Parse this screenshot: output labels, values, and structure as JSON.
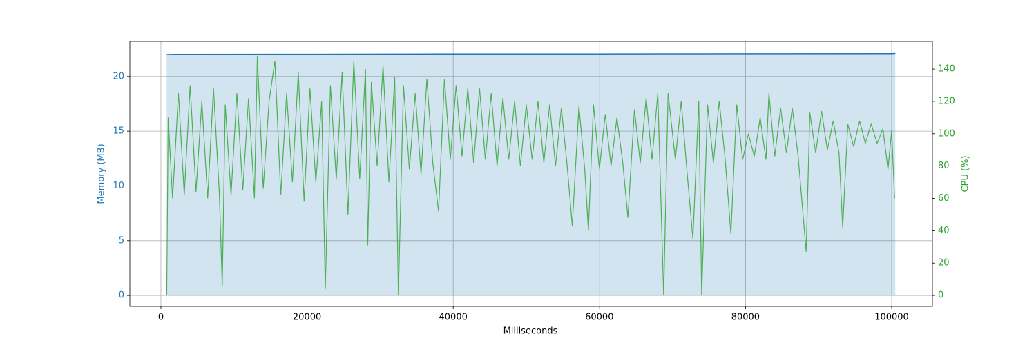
{
  "chart_data": {
    "type": "line",
    "xlabel": "Milliseconds",
    "ylabel": "Memory (MB)",
    "y2label": "CPU (%)",
    "xlim": [
      -4250,
      105575
    ],
    "ylim": [
      -1.0,
      23.2
    ],
    "y2lim": [
      -6.8,
      157.1
    ],
    "xticks": [
      0,
      20000,
      40000,
      60000,
      80000,
      100000
    ],
    "yticks": [
      0,
      5,
      10,
      15,
      20
    ],
    "y2ticks": [
      0,
      20,
      40,
      60,
      80,
      100,
      120,
      140
    ],
    "grid": true,
    "series": [
      {
        "color": "#1f77b4",
        "area": true,
        "x": [
          800,
          2000,
          20000,
          40000,
          60000,
          80000,
          100000,
          100500
        ],
        "values": [
          22.0,
          22.02,
          22.03,
          22.05,
          22.05,
          22.07,
          22.08,
          22.1
        ]
      },
      {
        "color": "#2ca02c",
        "axis": "y2",
        "x": [
          800,
          1000,
          1600,
          2400,
          3200,
          4000,
          4800,
          5600,
          6400,
          7200,
          8000,
          8400,
          8800,
          9600,
          10400,
          11200,
          12000,
          12800,
          13200,
          14000,
          14800,
          15600,
          16400,
          17200,
          18000,
          18800,
          19600,
          20400,
          21200,
          22000,
          22500,
          23200,
          24000,
          24800,
          25600,
          26400,
          27200,
          28000,
          28300,
          28800,
          29600,
          30400,
          31200,
          32000,
          32500,
          33200,
          34000,
          34800,
          35600,
          36400,
          37200,
          38000,
          38800,
          39600,
          40400,
          41200,
          42000,
          42800,
          43600,
          44400,
          45200,
          46000,
          46800,
          47600,
          48400,
          49200,
          50000,
          50800,
          51600,
          52400,
          53200,
          54000,
          54800,
          55600,
          56300,
          57200,
          58000,
          58500,
          59200,
          60000,
          60800,
          61600,
          62400,
          63200,
          63900,
          64800,
          65600,
          66400,
          67200,
          68000,
          68800,
          69400,
          70400,
          71200,
          72000,
          72800,
          73600,
          74000,
          74800,
          75600,
          76400,
          77200,
          78000,
          78800,
          79600,
          80400,
          81200,
          82000,
          82800,
          83200,
          84000,
          84800,
          85600,
          86400,
          87200,
          88300,
          88800,
          89600,
          90400,
          91200,
          92000,
          92800,
          93300,
          94000,
          94800,
          95600,
          96400,
          97200,
          98000,
          98800,
          99500,
          100000,
          100400
        ],
        "values": [
          0,
          110,
          60,
          125,
          62,
          130,
          64,
          120,
          60,
          128,
          63,
          6,
          118,
          62,
          125,
          65,
          122,
          60,
          148,
          66,
          120,
          145,
          62,
          125,
          70,
          138,
          58,
          128,
          70,
          120,
          4,
          130,
          72,
          138,
          50,
          145,
          72,
          140,
          31,
          132,
          80,
          142,
          70,
          135,
          0,
          130,
          78,
          125,
          75,
          134,
          82,
          52,
          134,
          84,
          130,
          86,
          128,
          82,
          128,
          84,
          125,
          80,
          122,
          84,
          120,
          80,
          118,
          84,
          120,
          82,
          118,
          80,
          116,
          80,
          43,
          117,
          78,
          40,
          118,
          78,
          112,
          80,
          110,
          82,
          48,
          115,
          82,
          122,
          84,
          125,
          0,
          125,
          84,
          120,
          76,
          35,
          120,
          0,
          118,
          82,
          120,
          85,
          38,
          118,
          84,
          100,
          86,
          110,
          84,
          125,
          86,
          116,
          88,
          116,
          86,
          27,
          113,
          88,
          114,
          90,
          108,
          88,
          42,
          106,
          92,
          108,
          94,
          106,
          94,
          103,
          78,
          102,
          60
        ]
      }
    ]
  }
}
